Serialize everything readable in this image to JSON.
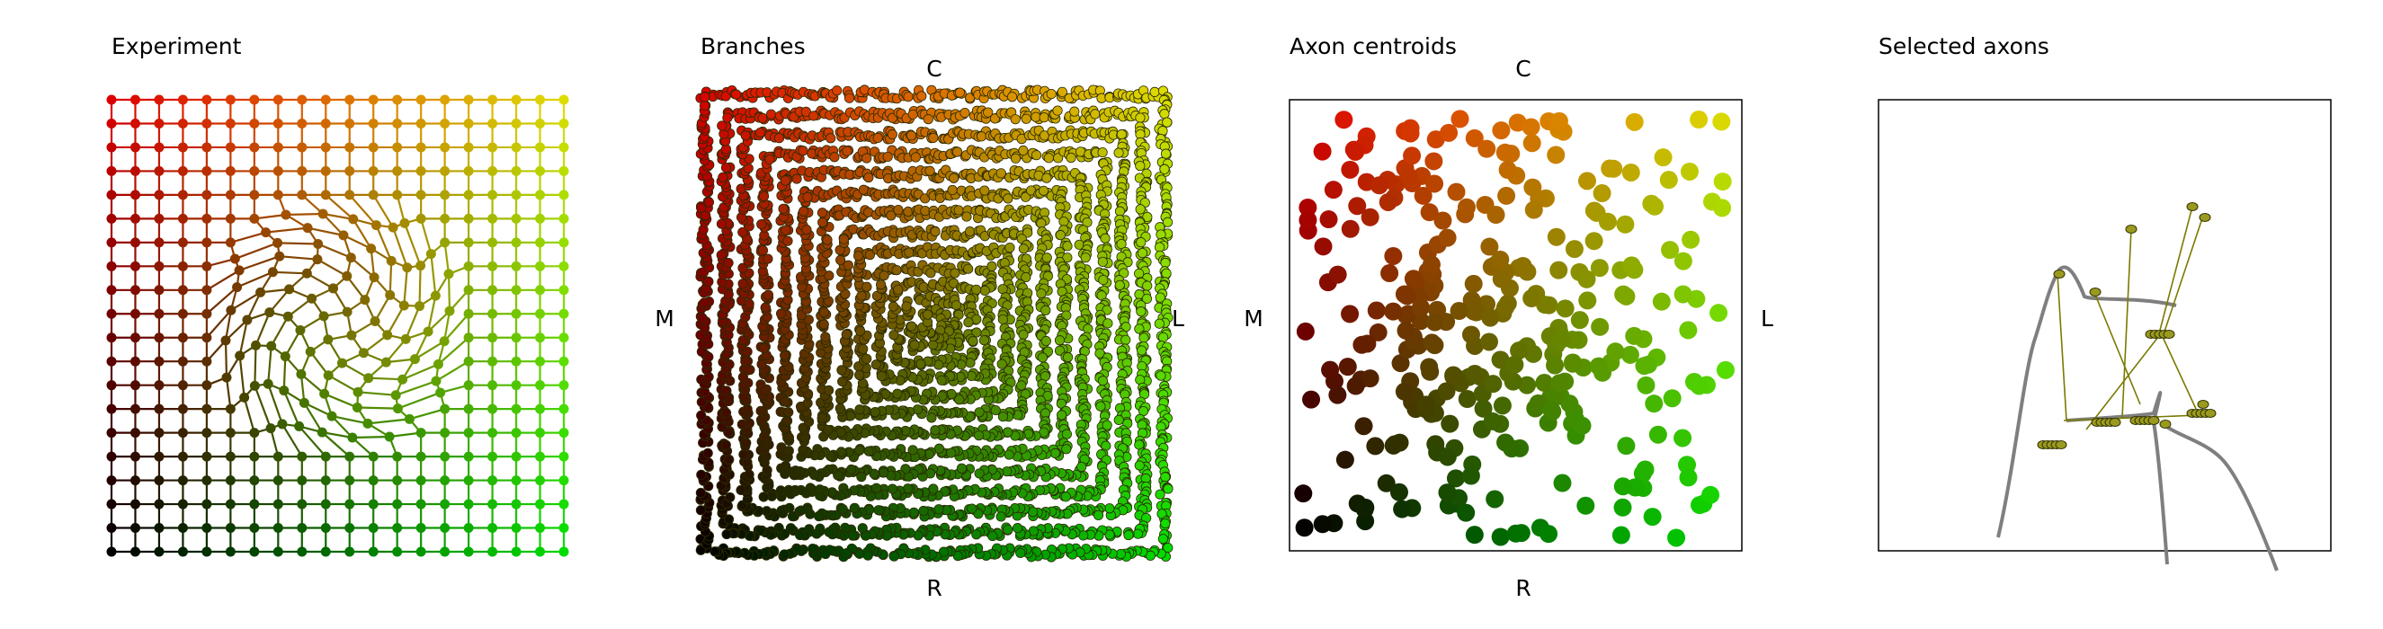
{
  "chart_data": [
    {
      "type": "scatter",
      "title": "Experiment",
      "description_of_marks": "regular 20x20 grid of colored nodes joined by lines; colour goes red (top-left) to yellow (top-right), black (bottom-left), green (bottom-right); a central disk of grid lines is rotated (swirl)",
      "grid_size": [
        20,
        20
      ],
      "axis": "off",
      "color_corners": {
        "top_left": "#dd0000",
        "top_right": "#dddd00",
        "bottom_left": "#000000",
        "bottom_right": "#00dd00"
      }
    },
    {
      "type": "scatter",
      "title": "Branches",
      "description_of_marks": "dense scatter of small colored dots with dark centers forming concentric square bands",
      "direction_labels": {
        "top": "C",
        "bottom": "R",
        "left": "M",
        "right": "L"
      },
      "axis": "off"
    },
    {
      "type": "scatter",
      "title": "Axon centroids",
      "description_of_marks": "large colored circles scattered inside a bordered box",
      "direction_labels": {
        "top": "C",
        "bottom": "R",
        "left": "M",
        "right": "L"
      },
      "axis": "box"
    },
    {
      "type": "other",
      "title": "Selected axons",
      "description_of_marks": "grey traced axon paths with thin olive lines linking to small olive marker clusters",
      "axis": "box"
    }
  ]
}
